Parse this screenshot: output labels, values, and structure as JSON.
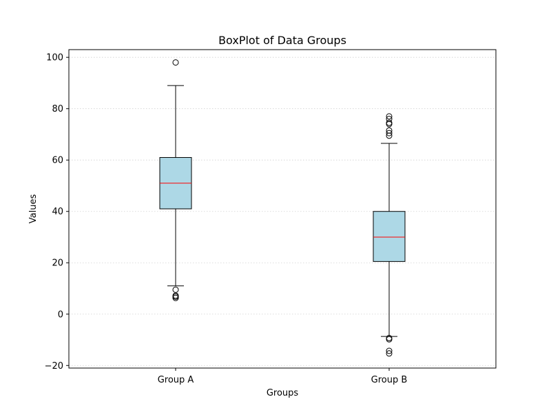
{
  "chart_data": {
    "type": "box",
    "title": "BoxPlot of Data Groups",
    "xlabel": "Groups",
    "ylabel": "Values",
    "categories": [
      "Group A",
      "Group B"
    ],
    "ylim": [
      -21,
      103
    ],
    "yticks": [
      -20,
      0,
      20,
      40,
      60,
      80,
      100
    ],
    "ytick_labels": [
      "−20",
      "0",
      "20",
      "40",
      "60",
      "80",
      "100"
    ],
    "grid": "y-dotted",
    "box_color": "#add8e6",
    "median_color": "#ff0000",
    "series": [
      {
        "whisker_low": 11,
        "q1": 41,
        "median": 51,
        "q3": 61,
        "whisker_high": 89,
        "outliers": [
          98,
          9.5,
          7.2,
          6.8,
          6.3
        ]
      },
      {
        "whisker_low": -8.7,
        "q1": 20.5,
        "median": 30,
        "q3": 40,
        "whisker_high": 66.5,
        "outliers": [
          77,
          76,
          74.5,
          74,
          71.5,
          70.5,
          69.5,
          -9.3,
          -9.8,
          -14.3,
          -15.3
        ]
      }
    ]
  }
}
